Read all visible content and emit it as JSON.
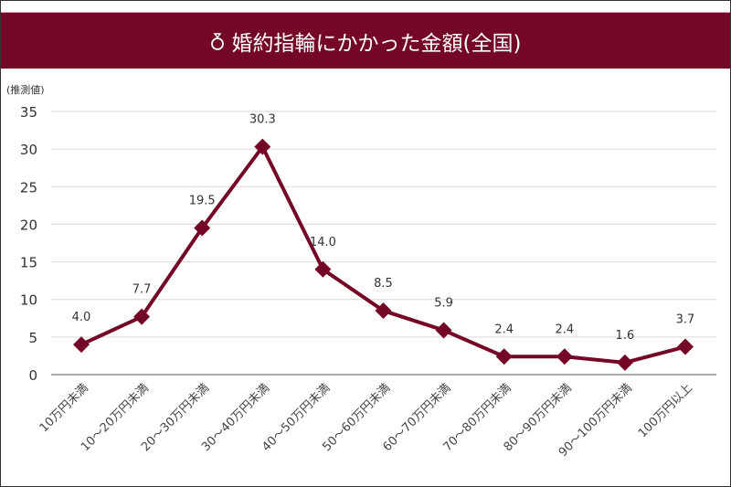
{
  "header": {
    "title": "婚約指輪にかかった金額(全国)",
    "icon": "ring-icon"
  },
  "colors": {
    "accent": "#740726",
    "grid": "#d9d9d9"
  },
  "chart_data": {
    "type": "line",
    "title": "婚約指輪にかかった金額(全国)",
    "ylabel": "(推測値)",
    "xlabel": "",
    "ylim": [
      0,
      35
    ],
    "yticks": [
      0,
      5,
      10,
      15,
      20,
      25,
      30,
      35
    ],
    "grid": true,
    "categories": [
      "10万円未満",
      "10～20万円未満",
      "20～30万円未満",
      "30～40万円未満",
      "40～50万円未満",
      "50～60万円未満",
      "60～70万円未満",
      "70～80万円未満",
      "80～90万円未満",
      "90～100万円未満",
      "100万円以上"
    ],
    "values": [
      4.0,
      7.7,
      19.5,
      30.3,
      14.0,
      8.5,
      5.9,
      2.4,
      2.4,
      1.6,
      3.7
    ],
    "labels": [
      "4.0",
      "7.7",
      "19.5",
      "30.3",
      "14.0",
      "8.5",
      "5.9",
      "2.4",
      "2.4",
      "1.6",
      "3.7"
    ]
  }
}
